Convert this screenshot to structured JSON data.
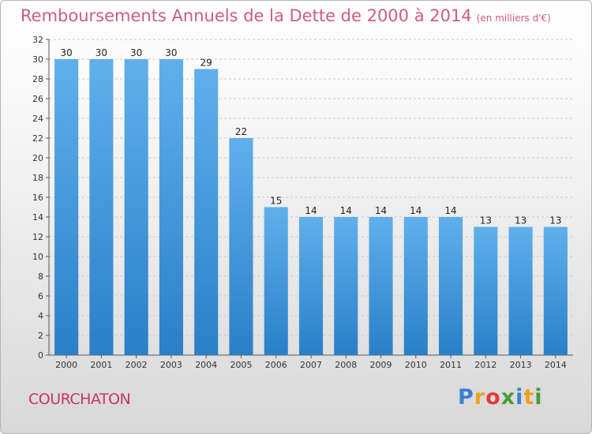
{
  "chart_data": {
    "type": "bar",
    "title": "Remboursements Annuels de la Dette de 2000 à 2014",
    "unit_note": "(en milliers d'€)",
    "categories": [
      "2000",
      "2001",
      "2002",
      "2003",
      "2004",
      "2005",
      "2006",
      "2007",
      "2008",
      "2009",
      "2010",
      "2011",
      "2012",
      "2013",
      "2014"
    ],
    "values": [
      30,
      30,
      30,
      30,
      29,
      22,
      15,
      14,
      14,
      14,
      14,
      14,
      13,
      13,
      13
    ],
    "ylim": [
      0,
      32
    ],
    "yticks": [
      0,
      2,
      4,
      6,
      8,
      10,
      12,
      14,
      16,
      18,
      20,
      22,
      24,
      26,
      28,
      30,
      32
    ],
    "grid": true,
    "data_labels": true,
    "bar_color": "#3a8fd8"
  },
  "commune": "COURCHATON",
  "logo": {
    "letters": [
      {
        "ch": "P",
        "color": "#3c7fd0"
      },
      {
        "ch": "r",
        "color": "#f0a020"
      },
      {
        "ch": "o",
        "color": "#e23b3b"
      },
      {
        "ch": "x",
        "color": "#4a9a3a"
      },
      {
        "ch": "i",
        "color": "#3c7fd0"
      },
      {
        "ch": "t",
        "color": "#f0a020"
      },
      {
        "ch": "i",
        "color": "#4a9a3a"
      }
    ]
  }
}
